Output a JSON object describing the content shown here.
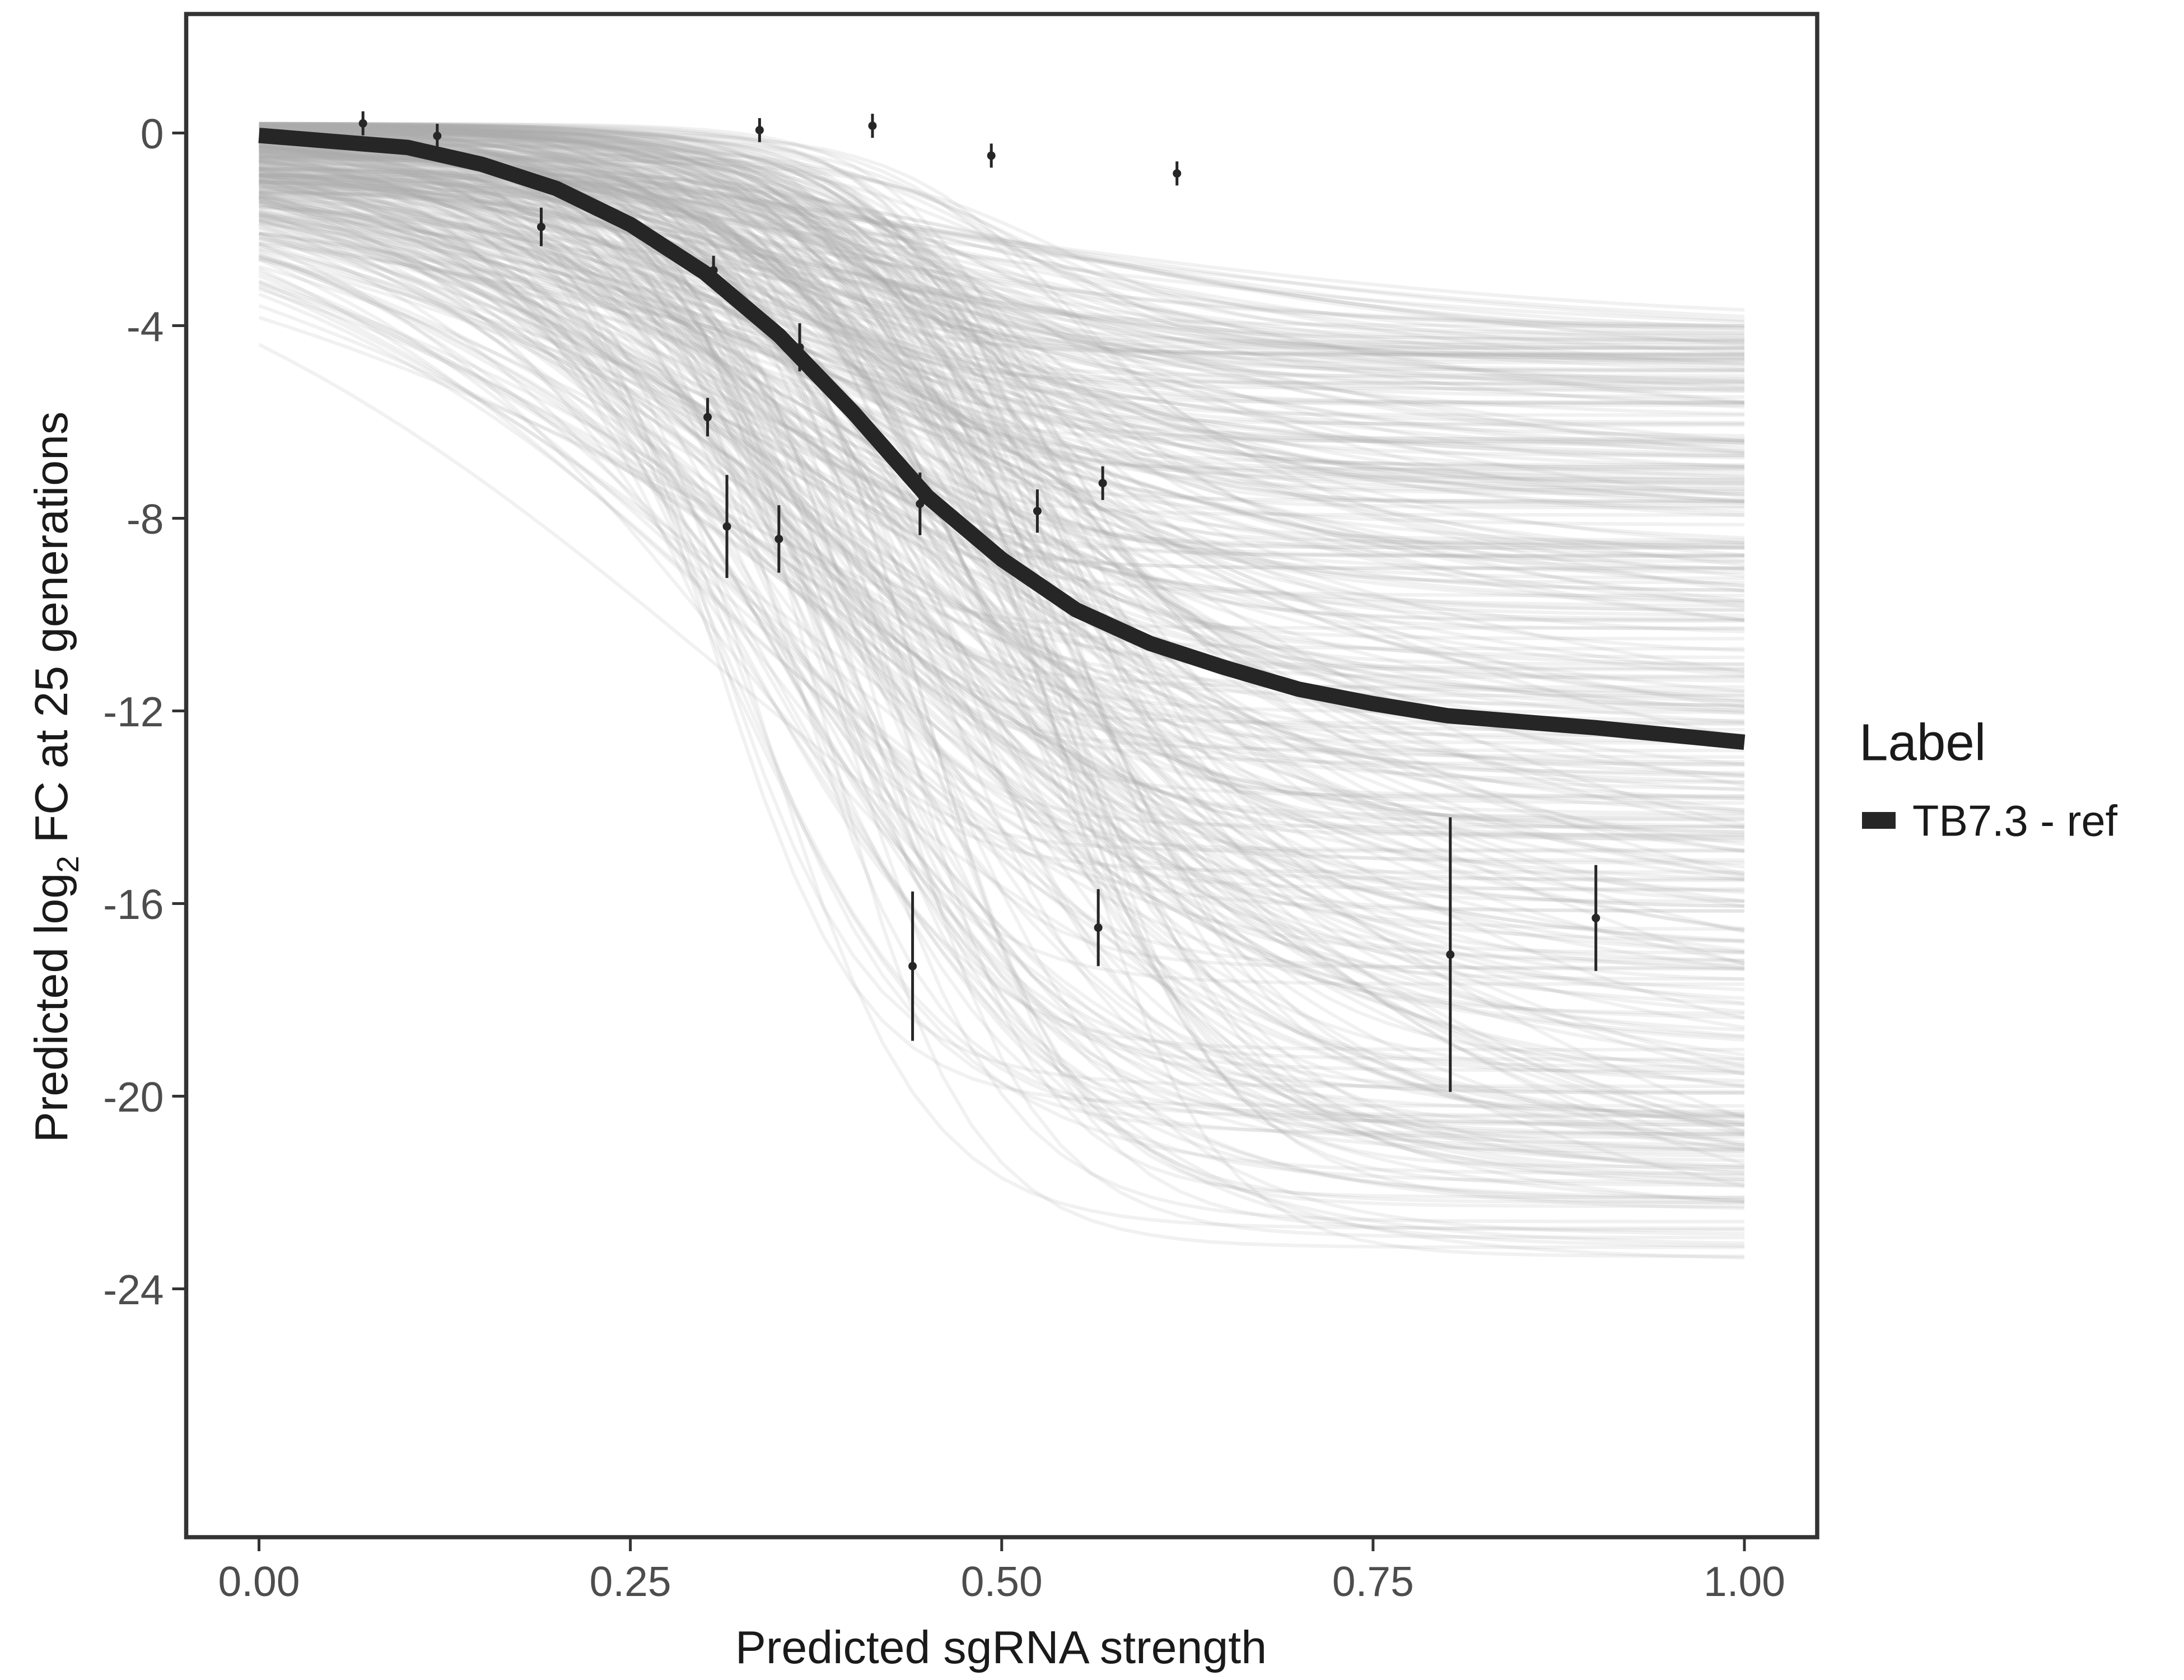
{
  "chart_data": {
    "type": "line",
    "title": "",
    "xlabel": "Predicted sgRNA strength",
    "ylabel_prefix": "Predicted  log",
    "ylabel_sub": "2",
    "ylabel_suffix": " FC at 25 generations",
    "xlim": [
      -0.05,
      1.05
    ],
    "ylim": [
      -29.2,
      2.5
    ],
    "x_ticks": [
      0,
      0.25,
      0.5,
      0.75,
      1
    ],
    "x_tick_labels": [
      "0.00",
      "0.25",
      "0.50",
      "0.75",
      "1.00"
    ],
    "y_ticks": [
      0,
      -4,
      -8,
      -12,
      -16,
      -20,
      -24
    ],
    "y_tick_labels": [
      "0",
      "-4",
      "-8",
      "-12",
      "-16",
      "-20",
      "-24"
    ],
    "grid": false,
    "legend": {
      "title": "Label",
      "position": "right",
      "entries": [
        {
          "label": "TB7.3 - ref",
          "color": "#262626"
        }
      ]
    },
    "fit_curve": {
      "name": "TB7.3 - ref",
      "color": "#262626",
      "x": [
        0,
        0.1,
        0.15,
        0.2,
        0.25,
        0.3,
        0.35,
        0.4,
        0.45,
        0.5,
        0.55,
        0.6,
        0.65,
        0.7,
        0.75,
        0.8,
        0.9,
        1.0
      ],
      "y": [
        -0.05,
        -0.3,
        -0.65,
        -1.15,
        -1.9,
        -2.9,
        -4.2,
        -5.8,
        -7.55,
        -8.85,
        -9.9,
        -10.6,
        -11.1,
        -11.55,
        -11.85,
        -12.1,
        -12.35,
        -12.65
      ]
    },
    "posterior_draws": {
      "count": 400,
      "color": "#aaaaaa"
    },
    "points": [
      {
        "x": 0.07,
        "y": 0.2,
        "err": 0.25
      },
      {
        "x": 0.12,
        "y": -0.06,
        "err": 0.25
      },
      {
        "x": 0.19,
        "y": -1.95,
        "err": 0.4
      },
      {
        "x": 0.306,
        "y": -2.85,
        "err": 0.3
      },
      {
        "x": 0.337,
        "y": 0.06,
        "err": 0.25
      },
      {
        "x": 0.364,
        "y": -4.45,
        "err": 0.5
      },
      {
        "x": 0.302,
        "y": -5.9,
        "err": 0.4
      },
      {
        "x": 0.315,
        "y": -8.17,
        "err": 1.07
      },
      {
        "x": 0.35,
        "y": -8.43,
        "err": 0.7
      },
      {
        "x": 0.413,
        "y": 0.15,
        "err": 0.25
      },
      {
        "x": 0.445,
        "y": -7.7,
        "err": 0.65
      },
      {
        "x": 0.44,
        "y": -17.3,
        "err": 1.55
      },
      {
        "x": 0.493,
        "y": -0.47,
        "err": 0.25
      },
      {
        "x": 0.524,
        "y": -7.85,
        "err": 0.45
      },
      {
        "x": 0.568,
        "y": -7.27,
        "err": 0.35
      },
      {
        "x": 0.565,
        "y": -16.5,
        "err": 0.8
      },
      {
        "x": 0.618,
        "y": -0.84,
        "err": 0.25
      },
      {
        "x": 0.802,
        "y": -17.06,
        "err": 2.85
      },
      {
        "x": 0.9,
        "y": -16.3,
        "err": 1.1
      }
    ]
  }
}
